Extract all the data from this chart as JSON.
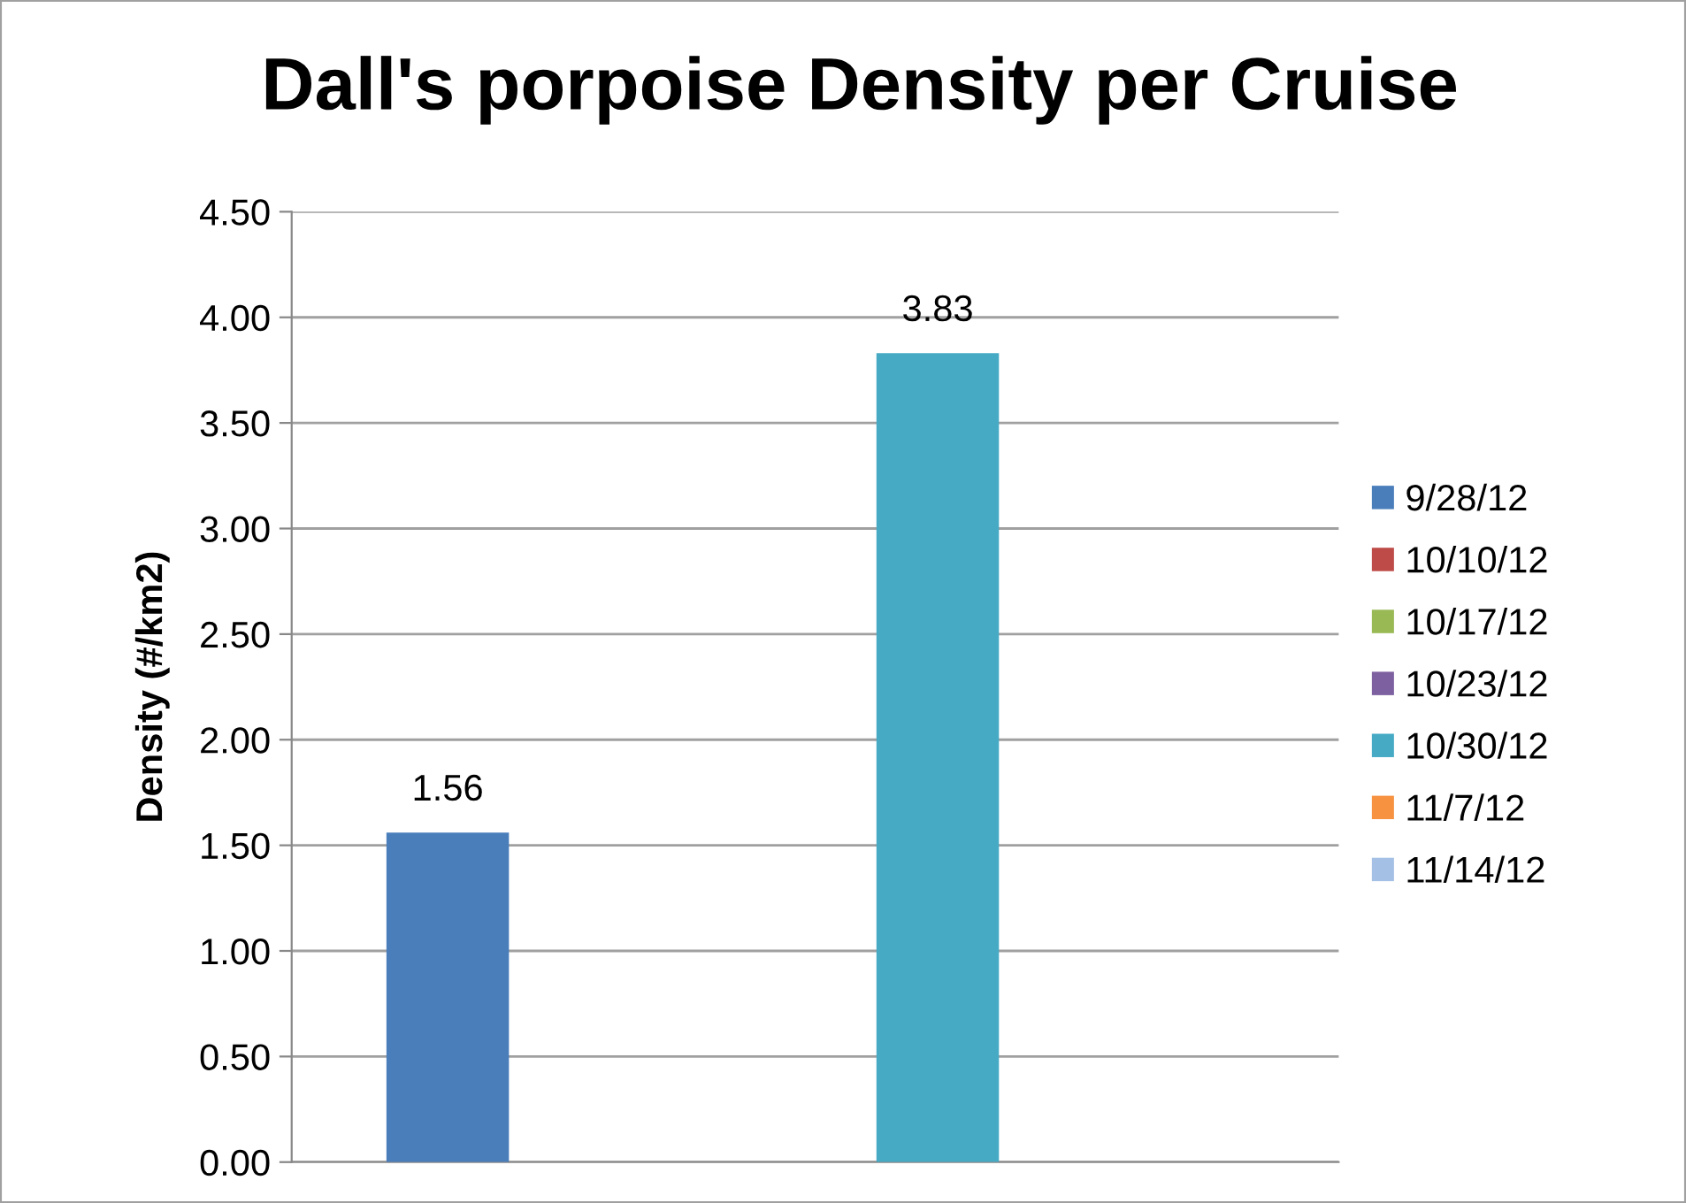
{
  "chart_data": {
    "type": "bar",
    "title": "Dall's porpoise Density per Cruise",
    "ylabel": "Density (#/km2)",
    "categories": [
      null
    ],
    "series": [
      {
        "name": "9/28/12",
        "color": "#4a7ebb",
        "values": [
          1.56
        ]
      },
      {
        "name": "10/10/12",
        "color": "#be4b48",
        "values": [
          null
        ]
      },
      {
        "name": "10/17/12",
        "color": "#98b954",
        "values": [
          null
        ]
      },
      {
        "name": "10/23/12",
        "color": "#7d60a0",
        "values": [
          null
        ]
      },
      {
        "name": "10/30/12",
        "color": "#46aac5",
        "values": [
          3.83
        ]
      },
      {
        "name": "11/7/12",
        "color": "#f69240",
        "values": [
          null
        ]
      },
      {
        "name": "11/14/12",
        "color": "#a5c0e5",
        "values": [
          null
        ]
      }
    ],
    "ylim": [
      0,
      4.5
    ],
    "yticks": [
      {
        "value": 0,
        "label": "0.00"
      },
      {
        "value": 0.5,
        "label": "0.50"
      },
      {
        "value": 1,
        "label": "1.00"
      },
      {
        "value": 1.5,
        "label": "1.50"
      },
      {
        "value": 2,
        "label": "2.00"
      },
      {
        "value": 2.5,
        "label": "2.50"
      },
      {
        "value": 3,
        "label": "3.00"
      },
      {
        "value": 3.5,
        "label": "3.50"
      },
      {
        "value": 4,
        "label": "4.00"
      },
      {
        "value": 4.5,
        "label": "4.50"
      }
    ],
    "grid": "y",
    "legend": "right",
    "data_labels": true,
    "tick_labels": "y"
  }
}
